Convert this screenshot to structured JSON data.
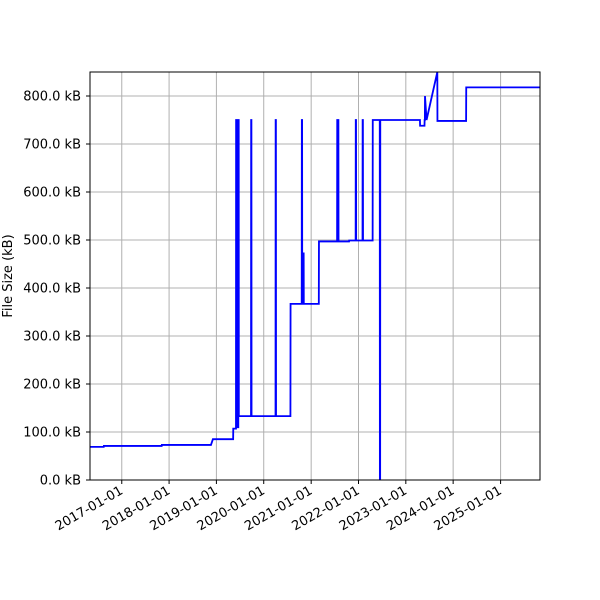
{
  "chart_data": {
    "type": "line",
    "title": "",
    "xlabel": "",
    "ylabel": "File Size (kB)",
    "x_type": "date",
    "xlim": [
      "2016-05-01",
      "2025-11-01"
    ],
    "ylim": [
      0,
      850
    ],
    "grid": true,
    "x_ticks": [
      "2017-01-01",
      "2018-01-01",
      "2019-01-01",
      "2020-01-01",
      "2021-01-01",
      "2022-01-01",
      "2023-01-01",
      "2024-01-01",
      "2025-01-01"
    ],
    "y_ticks": [
      0,
      100,
      200,
      300,
      400,
      500,
      600,
      700,
      800
    ],
    "y_tick_labels": [
      "0.0 kB",
      "100.0 kB",
      "200.0 kB",
      "300.0 kB",
      "400.0 kB",
      "500.0 kB",
      "600.0 kB",
      "700.0 kB",
      "800.0 kB"
    ],
    "colors": {
      "line": "#0000ff",
      "grid": "#b0b0b0",
      "axis": "#000000"
    },
    "series": [
      {
        "x": [
          "2016-05-01",
          "2016-08-15",
          "2016-08-16",
          "2017-11-05",
          "2017-11-06",
          "2018-11-20",
          "2018-12-05",
          "2018-12-06",
          "2019-05-10",
          "2019-05-11",
          "2019-06-01",
          "2019-06-02",
          "2019-06-04",
          "2019-06-05",
          "2019-06-07",
          "2019-06-08",
          "2019-06-10",
          "2019-06-11",
          "2019-06-13",
          "2019-06-14",
          "2019-06-16",
          "2019-06-17",
          "2019-06-19",
          "2019-06-20",
          "2019-06-22",
          "2019-06-23",
          "2019-09-25",
          "2019-09-26",
          "2019-09-28",
          "2019-09-29",
          "2020-04-01",
          "2020-04-02",
          "2020-04-04",
          "2020-04-05",
          "2020-07-25",
          "2020-07-26",
          "2020-10-20",
          "2020-10-21",
          "2020-10-23",
          "2020-10-24",
          "2020-11-01",
          "2020-11-02",
          "2020-11-04",
          "2020-11-05",
          "2021-03-01",
          "2021-03-02",
          "2021-06-05",
          "2021-06-06",
          "2021-07-20",
          "2021-07-21",
          "2021-07-23",
          "2021-07-24",
          "2021-07-27",
          "2021-07-28",
          "2021-07-30",
          "2021-07-31",
          "2021-10-20",
          "2021-10-21",
          "2021-12-10",
          "2021-12-11",
          "2021-12-13",
          "2021-12-14",
          "2022-02-01",
          "2022-02-02",
          "2022-02-04",
          "2022-02-05",
          "2022-04-20",
          "2022-04-21",
          "2022-04-27",
          "2022-04-28",
          "2022-06-14",
          "2022-06-15",
          "2022-06-17",
          "2022-06-18",
          "2023-04-20",
          "2023-04-21",
          "2023-05-25",
          "2023-05-26",
          "2023-05-28",
          "2023-05-29",
          "2023-06-10",
          "2023-09-01",
          "2023-09-02",
          "2024-04-10",
          "2024-04-11",
          "2025-11-01"
        ],
        "y": [
          69,
          69,
          71,
          71,
          73,
          73,
          85,
          85,
          85,
          107,
          107,
          750,
          750,
          110,
          110,
          750,
          750,
          110,
          110,
          750,
          750,
          110,
          110,
          750,
          750,
          133,
          133,
          750,
          750,
          133,
          133,
          750,
          750,
          133,
          133,
          367,
          367,
          750,
          750,
          367,
          367,
          472,
          472,
          367,
          367,
          497,
          497,
          497,
          497,
          750,
          750,
          497,
          497,
          750,
          750,
          497,
          497,
          499,
          499,
          750,
          750,
          499,
          499,
          750,
          750,
          499,
          499,
          750,
          750,
          750,
          750,
          0,
          0,
          750,
          750,
          738,
          738,
          750,
          750,
          800,
          750,
          850,
          748,
          748,
          818,
          818
        ]
      }
    ]
  }
}
